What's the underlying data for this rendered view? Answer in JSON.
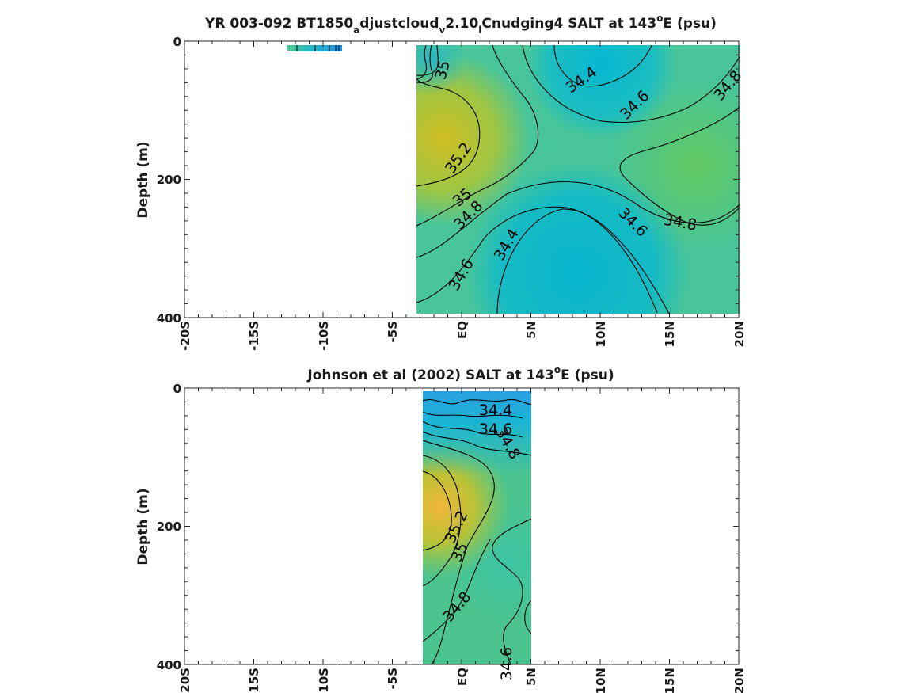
{
  "chart_data": [
    {
      "type": "heatmap",
      "title_parts": {
        "pre": "YR 003-092 BT1850",
        "sub1": "a",
        "mid1": "djustcloud",
        "sub2": "v",
        "mid2": "2.10",
        "sub3": "l",
        "mid3": "Cnudging4 SALT at 143",
        "sup": "o",
        "post": "E (psu)"
      },
      "ylabel": "Depth (m)",
      "xlim": [
        -20,
        20
      ],
      "ylim": [
        400,
        0
      ],
      "y_ticks": [
        "0",
        "200",
        "400"
      ],
      "x_ticks": [
        "-20S",
        "-15S",
        "-10S",
        "-5S",
        "EQ",
        "5N",
        "10N",
        "15N",
        "20N"
      ],
      "data_extent_lat": [
        -3.5,
        20
      ],
      "data_extent_depth": [
        5,
        395
      ],
      "contour_labels": [
        "35",
        "34.4",
        "34.6",
        "34.8",
        "35.2",
        "35",
        "34.8",
        "34.6",
        "34.8",
        "34.4",
        "34.6"
      ],
      "colormap_range_psu": [
        34.2,
        35.4
      ]
    },
    {
      "type": "heatmap",
      "title_parts": {
        "pre": "Johnson et al (2002) SALT at 143",
        "sup": "o",
        "post": "E (psu)"
      },
      "ylabel": "Depth (m)",
      "xlim": [
        -20,
        20
      ],
      "ylim": [
        400,
        0
      ],
      "y_ticks": [
        "0",
        "200",
        "400"
      ],
      "x_ticks": [
        "20S",
        "15S",
        "10S",
        "-5S",
        "EQ",
        "5N",
        "10N",
        "15N",
        "20N"
      ],
      "data_extent_lat": [
        -3,
        5
      ],
      "data_extent_depth": [
        5,
        400
      ],
      "contour_labels": [
        "34.4",
        "34.6",
        "34.8",
        "35.2",
        "35",
        "34.8",
        "34.6"
      ],
      "colormap_range_psu": [
        34.2,
        35.4
      ]
    }
  ]
}
